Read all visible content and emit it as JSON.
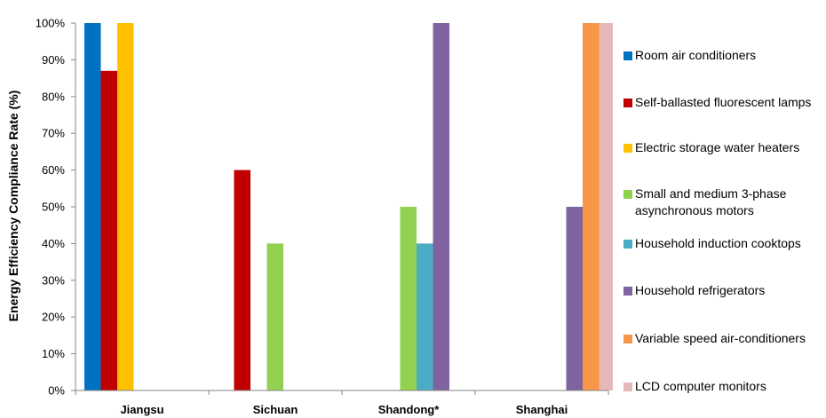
{
  "chart_data": {
    "type": "bar",
    "ylabel": "Energy Efficiency Compliance Rate (%)",
    "xlabel": "",
    "ylim": [
      0,
      100
    ],
    "yticks": [
      "0%",
      "10%",
      "20%",
      "30%",
      "40%",
      "50%",
      "60%",
      "70%",
      "80%",
      "90%",
      "100%"
    ],
    "categories": [
      "Jiangsu",
      "Sichuan",
      "Shandong*",
      "Shanghai"
    ],
    "series": [
      {
        "name": "Room air conditioners",
        "color": "#0070C0",
        "values": [
          100,
          null,
          null,
          null
        ]
      },
      {
        "name": "Self-ballasted fluorescent lamps",
        "color": "#C00000",
        "values": [
          87,
          60,
          null,
          null
        ]
      },
      {
        "name": "Electric storage water heaters",
        "color": "#FFC000",
        "values": [
          100,
          null,
          null,
          null
        ]
      },
      {
        "name": "Small and medium 3-phase asynchronous motors",
        "color": "#92D050",
        "values": [
          null,
          40,
          50,
          null
        ]
      },
      {
        "name": "Household induction cooktops",
        "color": "#4BACC6",
        "values": [
          null,
          null,
          40,
          null
        ]
      },
      {
        "name": "Household refrigerators",
        "color": "#8064A2",
        "values": [
          null,
          null,
          100,
          50
        ]
      },
      {
        "name": "Variable speed air-conditioners",
        "color": "#F79646",
        "values": [
          null,
          null,
          null,
          100
        ]
      },
      {
        "name": "LCD computer monitors",
        "color": "#E6B9B8",
        "values": [
          null,
          null,
          null,
          100
        ]
      }
    ],
    "grid": false,
    "legend_position": "right"
  }
}
